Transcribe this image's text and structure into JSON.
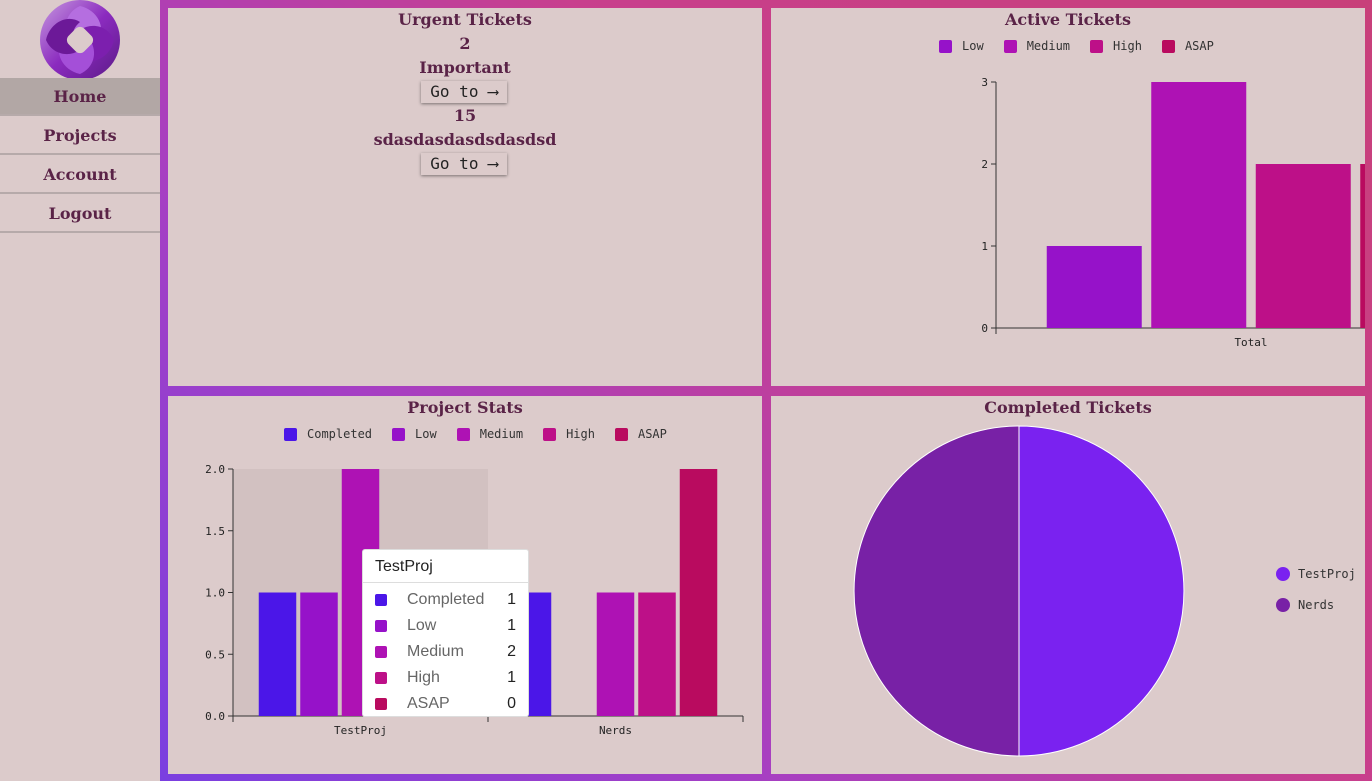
{
  "nav": {
    "items": [
      "Home",
      "Projects",
      "Account",
      "Logout"
    ],
    "active": "Home"
  },
  "urgent": {
    "title": "Urgent Tickets",
    "entries": [
      {
        "count": "2",
        "name": "Important",
        "button": "Go to ⟶"
      },
      {
        "count": "15",
        "name": "sdasdasdasdsdasdsd",
        "button": "Go to ⟶"
      }
    ]
  },
  "colors": {
    "completed": "#4b16e8",
    "low": "#9612c9",
    "medium": "#ae12b4",
    "high": "#bd1088",
    "asap": "#b90b5f",
    "testproj": "#7a22f0",
    "nerds": "#7821a6",
    "title": "#5a2347"
  },
  "active_chart": {
    "title": "Active Tickets",
    "legend": [
      "Low",
      "Medium",
      "High",
      "ASAP"
    ]
  },
  "project_chart": {
    "title": "Project Stats",
    "legend": [
      "Completed",
      "Low",
      "Medium",
      "High",
      "ASAP"
    ]
  },
  "completed_chart": {
    "title": "Completed Tickets",
    "legend": [
      "TestProj",
      "Nerds"
    ]
  },
  "tooltip": {
    "title": "TestProj",
    "rows": [
      {
        "label": "Completed",
        "value": "1"
      },
      {
        "label": "Low",
        "value": "1"
      },
      {
        "label": "Medium",
        "value": "2"
      },
      {
        "label": "High",
        "value": "1"
      },
      {
        "label": "ASAP",
        "value": "0"
      }
    ]
  },
  "chart_data": [
    {
      "type": "bar",
      "title": "Active Tickets",
      "categories": [
        "Total"
      ],
      "series": [
        {
          "name": "Low",
          "values": [
            1
          ]
        },
        {
          "name": "Medium",
          "values": [
            3
          ]
        },
        {
          "name": "High",
          "values": [
            2
          ]
        },
        {
          "name": "ASAP",
          "values": [
            2
          ]
        }
      ],
      "yticks": [
        "0",
        "1",
        "2",
        "3"
      ],
      "ylim": [
        0,
        3
      ],
      "legend": "top"
    },
    {
      "type": "bar",
      "title": "Project Stats",
      "categories": [
        "TestProj",
        "Nerds"
      ],
      "series": [
        {
          "name": "Completed",
          "values": [
            1,
            1
          ]
        },
        {
          "name": "Low",
          "values": [
            1,
            0
          ]
        },
        {
          "name": "Medium",
          "values": [
            2,
            1
          ]
        },
        {
          "name": "High",
          "values": [
            1,
            1
          ]
        },
        {
          "name": "ASAP",
          "values": [
            0,
            2
          ]
        }
      ],
      "yticks": [
        "0.0",
        "0.5",
        "1.0",
        "1.5",
        "2.0"
      ],
      "ylim": [
        0,
        2
      ],
      "legend": "top"
    },
    {
      "type": "pie",
      "title": "Completed Tickets",
      "labels": [
        "TestProj",
        "Nerds"
      ],
      "values": [
        1,
        1
      ],
      "legend": "right"
    }
  ]
}
